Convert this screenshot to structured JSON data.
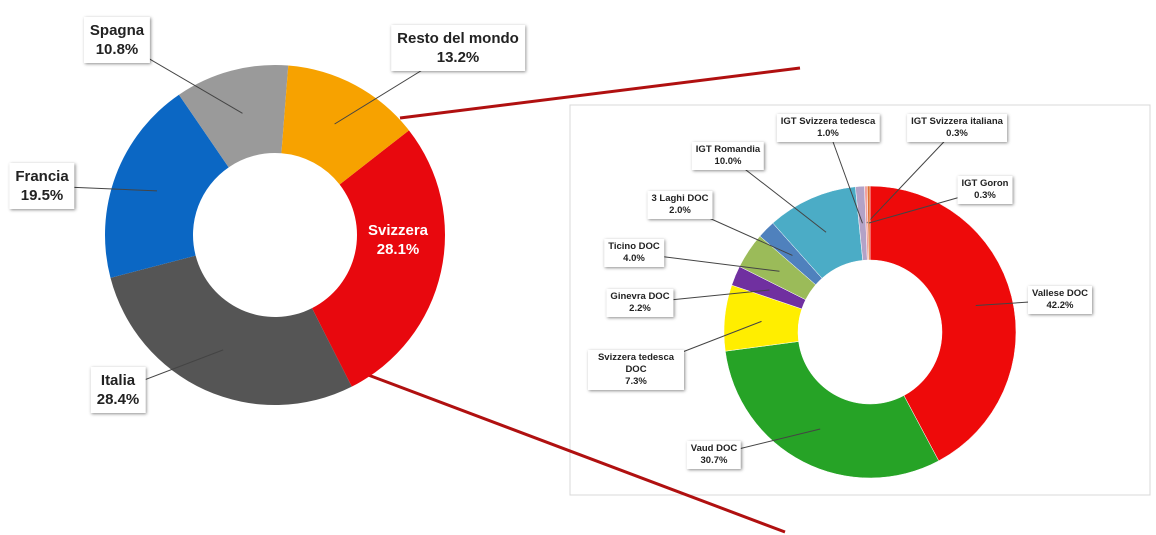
{
  "chart_data": [
    {
      "type": "donut",
      "categories": [
        "Svizzera",
        "Italia",
        "Francia",
        "Spagna",
        "Resto del mondo"
      ],
      "values": [
        28.1,
        28.4,
        19.5,
        10.8,
        13.2
      ],
      "value_labels": [
        "28.1%",
        "28.4%",
        "19.5%",
        "10.8%",
        "13.2%"
      ],
      "colors": [
        "#e8080e",
        "#555555",
        "#0b67c4",
        "#9a9a9a",
        "#f7a200"
      ]
    },
    {
      "type": "donut",
      "categories": [
        "Vallese DOC",
        "Vaud DOC",
        "Svizzera tedesca DOC",
        "Ginevra DOC",
        "Ticino DOC",
        "3 Laghi DOC",
        "IGT Romandia",
        "IGT Svizzera tedesca",
        "IGT Svizzera italiana",
        "IGT Goron"
      ],
      "values": [
        42.2,
        30.7,
        7.3,
        2.2,
        4.0,
        2.0,
        10.0,
        1.0,
        0.3,
        0.3
      ],
      "value_labels": [
        "42.2%",
        "30.7%",
        "7.3%",
        "2.2%",
        "4.0%",
        "2.0%",
        "10.0%",
        "1.0%",
        "0.3%",
        "0.3%"
      ],
      "colors": [
        "#ee0a0a",
        "#26a326",
        "#ffee00",
        "#7030a0",
        "#9bbb59",
        "#4f81bd",
        "#4bacc6",
        "#b3a2c7",
        "#f2a0a0",
        "#e07030"
      ]
    }
  ]
}
